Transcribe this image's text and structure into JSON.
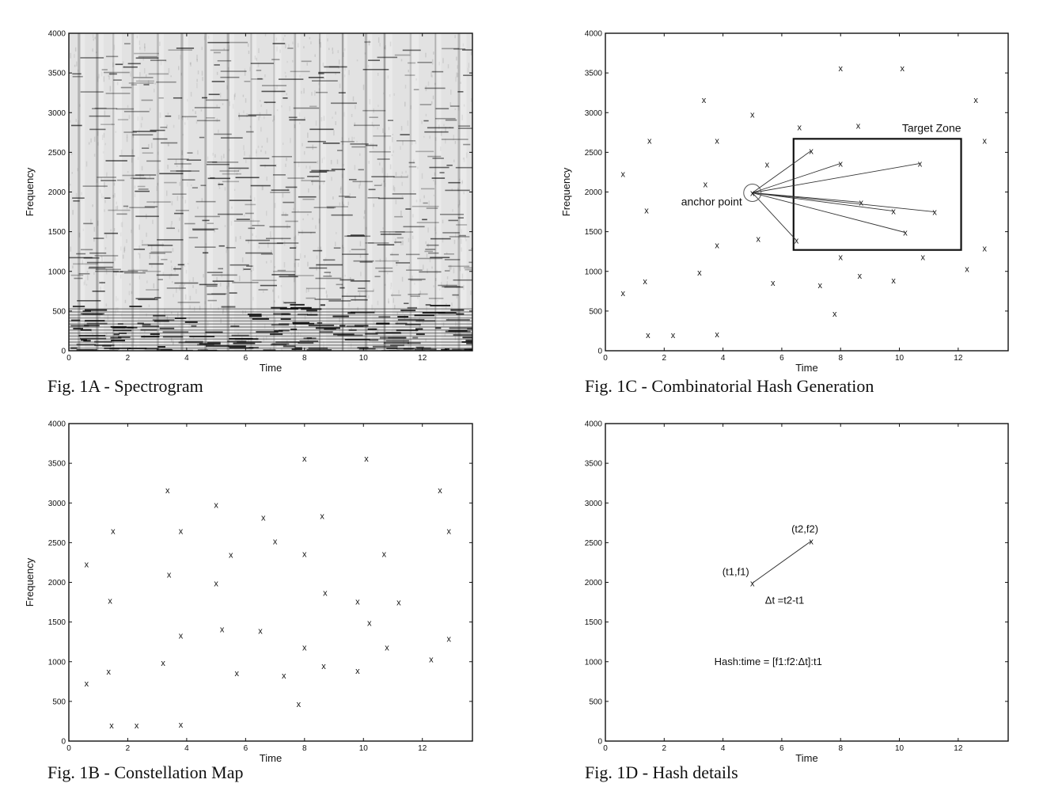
{
  "chart_data": [
    {
      "id": "fig1a",
      "type": "heatmap",
      "caption": "Fig. 1A - Spectrogram",
      "xlabel": "Time",
      "ylabel": "Frequency",
      "xlim": [
        0,
        13.7
      ],
      "ylim": [
        0,
        4000
      ],
      "xticks": [
        0,
        2,
        4,
        6,
        8,
        10,
        12
      ],
      "yticks": [
        0,
        500,
        1000,
        1500,
        2000,
        2500,
        3000,
        3500,
        4000
      ],
      "colormap": "grayscale-inverted"
    },
    {
      "id": "fig1c",
      "type": "scatter",
      "caption": "Fig. 1C - Combinatorial Hash Generation",
      "xlabel": "Time",
      "ylabel": "Frequency",
      "xlim": [
        0,
        13.7
      ],
      "ylim": [
        0,
        4000
      ],
      "xticks": [
        0,
        2,
        4,
        6,
        8,
        10,
        12
      ],
      "yticks": [
        0,
        500,
        1000,
        1500,
        2000,
        2500,
        3000,
        3500,
        4000
      ],
      "points": [
        [
          0.6,
          2230
        ],
        [
          0.6,
          730
        ],
        [
          1.35,
          880
        ],
        [
          1.4,
          1770
        ],
        [
          1.45,
          200
        ],
        [
          1.5,
          2650
        ],
        [
          2.3,
          200
        ],
        [
          3.2,
          990
        ],
        [
          3.35,
          3160
        ],
        [
          3.4,
          2100
        ],
        [
          3.8,
          1330
        ],
        [
          3.8,
          2650
        ],
        [
          3.8,
          210
        ],
        [
          5.0,
          2980
        ],
        [
          5.2,
          1410
        ],
        [
          5.5,
          2350
        ],
        [
          5.7,
          860
        ],
        [
          6.5,
          1390
        ],
        [
          6.6,
          2820
        ],
        [
          7.0,
          2520
        ],
        [
          7.3,
          830
        ],
        [
          7.8,
          470
        ],
        [
          8.0,
          3560
        ],
        [
          8.0,
          2360
        ],
        [
          8.0,
          1180
        ],
        [
          8.6,
          2840
        ],
        [
          8.65,
          950
        ],
        [
          8.7,
          1870
        ],
        [
          9.8,
          890
        ],
        [
          9.8,
          1760
        ],
        [
          10.1,
          3560
        ],
        [
          10.2,
          1490
        ],
        [
          10.7,
          2360
        ],
        [
          10.8,
          1180
        ],
        [
          11.2,
          1750
        ],
        [
          12.3,
          1030
        ],
        [
          12.6,
          3160
        ],
        [
          12.9,
          2650
        ],
        [
          12.9,
          1290
        ]
      ],
      "anchor": [
        5.0,
        1990
      ],
      "targets": [
        [
          7.0,
          2520
        ],
        [
          8.0,
          2360
        ],
        [
          10.7,
          2360
        ],
        [
          8.7,
          1870
        ],
        [
          9.8,
          1760
        ],
        [
          11.2,
          1750
        ],
        [
          10.2,
          1490
        ],
        [
          6.5,
          1390
        ]
      ],
      "target_zone": {
        "x": [
          6.4,
          12.1
        ],
        "y": [
          1270,
          2670
        ]
      },
      "annotations": {
        "anchor_label": "anchor point",
        "zone_label": "Target Zone"
      }
    },
    {
      "id": "fig1b",
      "type": "scatter",
      "caption": "Fig. 1B - Constellation Map",
      "xlabel": "Time",
      "ylabel": "Frequency",
      "xlim": [
        0,
        13.7
      ],
      "ylim": [
        0,
        4000
      ],
      "xticks": [
        0,
        2,
        4,
        6,
        8,
        10,
        12
      ],
      "yticks": [
        0,
        500,
        1000,
        1500,
        2000,
        2500,
        3000,
        3500,
        4000
      ],
      "points": [
        [
          0.6,
          2230
        ],
        [
          0.6,
          730
        ],
        [
          1.35,
          880
        ],
        [
          1.4,
          1770
        ],
        [
          1.45,
          200
        ],
        [
          1.5,
          2650
        ],
        [
          2.3,
          200
        ],
        [
          3.2,
          990
        ],
        [
          3.35,
          3160
        ],
        [
          3.4,
          2100
        ],
        [
          3.8,
          1330
        ],
        [
          3.8,
          2650
        ],
        [
          3.8,
          210
        ],
        [
          5.0,
          2980
        ],
        [
          5.0,
          1990
        ],
        [
          5.2,
          1410
        ],
        [
          5.5,
          2350
        ],
        [
          5.7,
          860
        ],
        [
          6.5,
          1390
        ],
        [
          6.6,
          2820
        ],
        [
          7.0,
          2520
        ],
        [
          7.3,
          830
        ],
        [
          7.8,
          470
        ],
        [
          8.0,
          3560
        ],
        [
          8.0,
          2360
        ],
        [
          8.0,
          1180
        ],
        [
          8.6,
          2840
        ],
        [
          8.65,
          950
        ],
        [
          8.7,
          1870
        ],
        [
          9.8,
          890
        ],
        [
          9.8,
          1760
        ],
        [
          10.1,
          3560
        ],
        [
          10.2,
          1490
        ],
        [
          10.7,
          2360
        ],
        [
          10.8,
          1180
        ],
        [
          11.2,
          1750
        ],
        [
          12.3,
          1030
        ],
        [
          12.6,
          3160
        ],
        [
          12.9,
          2650
        ],
        [
          12.9,
          1290
        ]
      ]
    },
    {
      "id": "fig1d",
      "type": "line",
      "caption": "Fig. 1D - Hash details",
      "xlabel": "Time",
      "ylabel": "",
      "xlim": [
        0,
        13.7
      ],
      "ylim": [
        0,
        4000
      ],
      "xticks": [
        0,
        2,
        4,
        6,
        8,
        10,
        12
      ],
      "yticks": [
        0,
        500,
        1000,
        1500,
        2000,
        2500,
        3000,
        3500,
        4000
      ],
      "points": [
        [
          5.0,
          1990
        ],
        [
          7.0,
          2520
        ]
      ],
      "annotations": {
        "p1_label": "(t1,f1)",
        "p2_label": "(t2,f2)",
        "dt_label": "Δt =t2-t1",
        "hash_label": "Hash:time = [f1:f2:Δt]:t1"
      }
    }
  ]
}
